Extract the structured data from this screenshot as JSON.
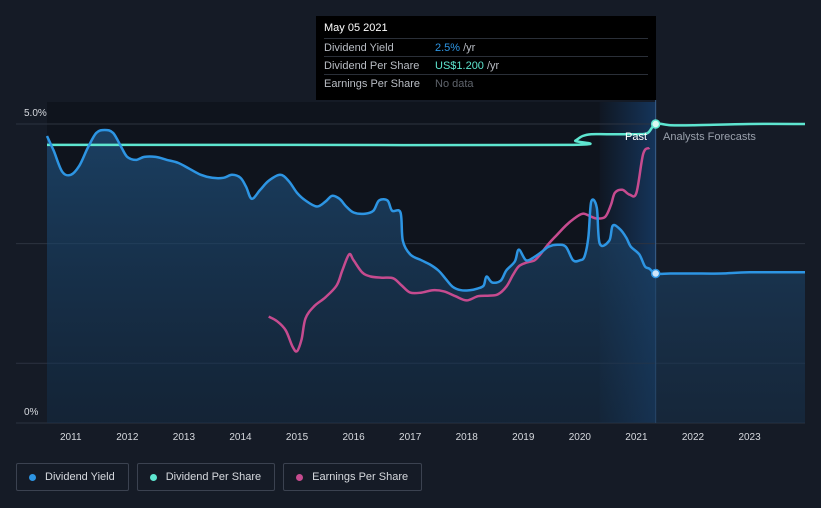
{
  "tooltip": {
    "date": "May 05 2021",
    "rows": [
      {
        "label": "Dividend Yield",
        "value": "2.5%",
        "unit": "/yr"
      },
      {
        "label": "Dividend Per Share",
        "value": "US$1.200",
        "unit": "/yr"
      },
      {
        "label": "Earnings Per Share",
        "value": "No data"
      }
    ]
  },
  "annotations": {
    "past": "Past",
    "forecast": "Analysts Forecasts"
  },
  "legend": [
    {
      "label": "Dividend Yield",
      "color": "#2d95e3"
    },
    {
      "label": "Dividend Per Share",
      "color": "#5ee6d0"
    },
    {
      "label": "Earnings Per Share",
      "color": "#c64b8f"
    }
  ],
  "chart_data": {
    "type": "line",
    "x_ticks": [
      "2011",
      "2012",
      "2013",
      "2014",
      "2015",
      "2016",
      "2017",
      "2018",
      "2019",
      "2020",
      "2021",
      "2022",
      "2023"
    ],
    "y_ticks": [
      "5.0%",
      "0%"
    ],
    "ylim": [
      0,
      5
    ],
    "xlim": [
      2010.58,
      2023.98
    ],
    "past_end": 2021.34,
    "past_shade_start": 2020.35,
    "colors": {
      "yield": "#2d95e3",
      "dps": "#5ee6d0",
      "eps": "#c64b8f"
    },
    "series": [
      {
        "name": "Dividend Yield",
        "color": "#2d95e3",
        "x": [
          2010.58,
          2010.7,
          2010.85,
          2011.0,
          2011.15,
          2011.3,
          2011.45,
          2011.6,
          2011.75,
          2011.9,
          2012.0,
          2012.15,
          2012.3,
          2012.5,
          2012.7,
          2012.9,
          2013.1,
          2013.3,
          2013.5,
          2013.7,
          2013.85,
          2014.0,
          2014.1,
          2014.2,
          2014.35,
          2014.5,
          2014.7,
          2014.85,
          2015.0,
          2015.15,
          2015.35,
          2015.5,
          2015.62,
          2015.75,
          2015.87,
          2016.0,
          2016.2,
          2016.35,
          2016.45,
          2016.6,
          2016.68,
          2016.83,
          2016.87,
          2017.0,
          2017.2,
          2017.35,
          2017.5,
          2017.62,
          2017.75,
          2017.9,
          2018.05,
          2018.2,
          2018.3,
          2018.35,
          2018.45,
          2018.6,
          2018.7,
          2018.85,
          2018.92,
          2019.05,
          2019.2,
          2019.35,
          2019.45,
          2019.6,
          2019.75,
          2019.88,
          2020.0,
          2020.08,
          2020.15,
          2020.2,
          2020.3,
          2020.35,
          2020.52,
          2020.58,
          2020.7,
          2020.82,
          2020.9,
          2021.05,
          2021.15,
          2021.23,
          2021.34,
          2021.6,
          2022.0,
          2022.5,
          2023.0,
          2023.98
        ],
        "values": [
          4.8,
          4.55,
          4.2,
          4.15,
          4.3,
          4.6,
          4.85,
          4.9,
          4.85,
          4.6,
          4.45,
          4.4,
          4.45,
          4.45,
          4.4,
          4.35,
          4.25,
          4.15,
          4.1,
          4.1,
          4.15,
          4.1,
          3.95,
          3.75,
          3.9,
          4.05,
          4.15,
          4.05,
          3.85,
          3.72,
          3.62,
          3.7,
          3.8,
          3.75,
          3.62,
          3.52,
          3.5,
          3.55,
          3.72,
          3.72,
          3.55,
          3.52,
          3.05,
          2.82,
          2.72,
          2.65,
          2.55,
          2.42,
          2.28,
          2.22,
          2.22,
          2.25,
          2.3,
          2.45,
          2.35,
          2.38,
          2.55,
          2.7,
          2.9,
          2.72,
          2.78,
          2.88,
          2.95,
          2.98,
          2.95,
          2.72,
          2.72,
          2.78,
          3.1,
          3.7,
          3.6,
          3.0,
          3.05,
          3.3,
          3.25,
          3.1,
          2.95,
          2.82,
          2.62,
          2.58,
          2.5,
          2.5,
          2.5,
          2.5,
          2.52,
          2.52
        ]
      },
      {
        "name": "Dividend Per Share",
        "color": "#5ee6d0",
        "x": [
          2010.58,
          2015.0,
          2019.8,
          2019.92,
          2020.05,
          2020.2,
          2020.5,
          2021.0,
          2021.2,
          2021.34,
          2021.6,
          2022.0,
          2023.0,
          2023.98
        ],
        "values": [
          4.65,
          4.65,
          4.65,
          4.72,
          4.8,
          4.83,
          4.83,
          4.83,
          4.85,
          5.0,
          4.98,
          4.98,
          5.0,
          5.0
        ]
      },
      {
        "name": "Earnings Per Share",
        "color": "#c64b8f",
        "x": [
          2014.5,
          2014.65,
          2014.8,
          2014.92,
          2015.0,
          2015.08,
          2015.15,
          2015.3,
          2015.5,
          2015.7,
          2015.8,
          2015.92,
          2016.0,
          2016.15,
          2016.3,
          2016.5,
          2016.7,
          2016.85,
          2017.0,
          2017.2,
          2017.4,
          2017.6,
          2017.8,
          2018.0,
          2018.2,
          2018.4,
          2018.55,
          2018.7,
          2018.82,
          2018.92,
          2019.05,
          2019.2,
          2019.3,
          2019.45,
          2019.6,
          2019.75,
          2019.9,
          2020.05,
          2020.2,
          2020.3,
          2020.45,
          2020.55,
          2020.62,
          2020.75,
          2020.88,
          2021.0,
          2021.12,
          2021.23
        ],
        "values": [
          1.78,
          1.7,
          1.55,
          1.28,
          1.2,
          1.4,
          1.75,
          1.95,
          2.1,
          2.3,
          2.55,
          2.82,
          2.72,
          2.52,
          2.45,
          2.43,
          2.42,
          2.3,
          2.18,
          2.18,
          2.22,
          2.2,
          2.12,
          2.05,
          2.12,
          2.13,
          2.15,
          2.28,
          2.48,
          2.62,
          2.68,
          2.72,
          2.82,
          3.0,
          3.15,
          3.3,
          3.42,
          3.5,
          3.45,
          3.42,
          3.45,
          3.65,
          3.85,
          3.9,
          3.82,
          3.85,
          4.5,
          4.6
        ]
      }
    ]
  }
}
